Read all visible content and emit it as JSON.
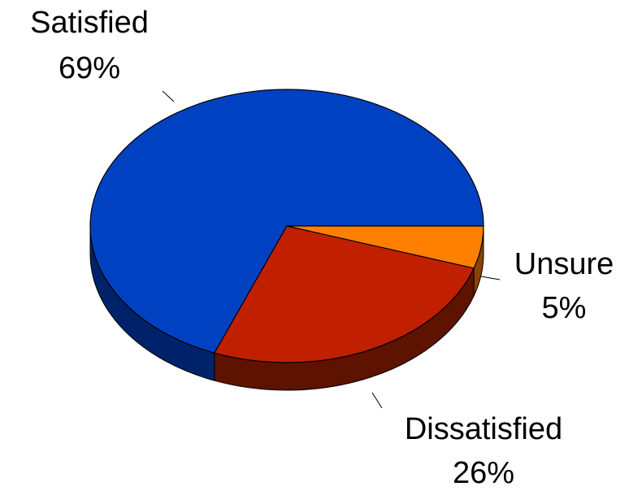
{
  "chart_data": {
    "type": "pie",
    "style": "3d",
    "slices": [
      {
        "label": "Satisfied",
        "percent_label": "69%",
        "value": 69,
        "color": "#0041C2",
        "side_color": "#00226B"
      },
      {
        "label": "Dissatisfied",
        "percent_label": "26%",
        "value": 26,
        "color": "#C02000",
        "side_color": "#5E1200"
      },
      {
        "label": "Unsure",
        "percent_label": "5%",
        "value": 5,
        "color": "#FF8000",
        "side_color": "#8A4400"
      }
    ]
  }
}
